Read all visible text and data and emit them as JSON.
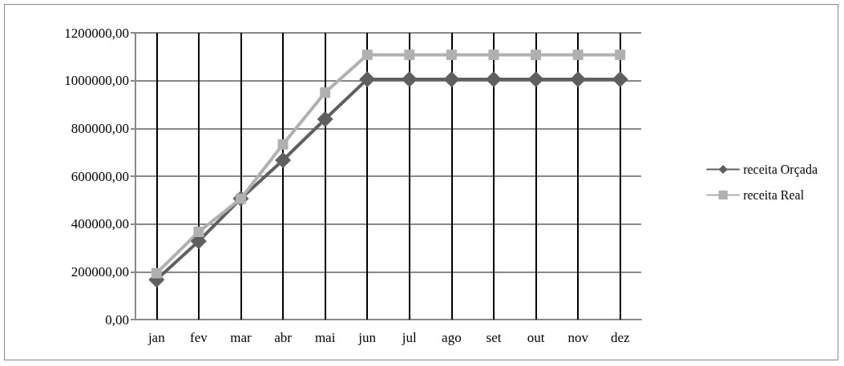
{
  "chart_data": {
    "type": "line",
    "categories": [
      "jan",
      "fev",
      "mar",
      "abr",
      "mai",
      "jun",
      "jul",
      "ago",
      "set",
      "out",
      "nov",
      "dez"
    ],
    "series": [
      {
        "name": "receita Orçada",
        "color": "#5f5f5f",
        "marker": "diamond",
        "values": [
          167000,
          328000,
          506000,
          667000,
          839000,
          1006000,
          1006000,
          1006000,
          1006000,
          1006000,
          1006000,
          1006000
        ]
      },
      {
        "name": "receita Real",
        "color": "#b0b0b0",
        "marker": "square",
        "values": [
          194000,
          367000,
          506000,
          733000,
          950000,
          1108000,
          1108000,
          1108000,
          1108000,
          1108000,
          1108000,
          1108000
        ]
      }
    ],
    "ylim": [
      0,
      1200000
    ],
    "yticks": [
      {
        "value": 0,
        "label": "0,00"
      },
      {
        "value": 200000,
        "label": "200000,00"
      },
      {
        "value": 400000,
        "label": "400000,00"
      },
      {
        "value": 600000,
        "label": "600000,00"
      },
      {
        "value": 800000,
        "label": "800000,00"
      },
      {
        "value": 1000000,
        "label": "1000000,00"
      },
      {
        "value": 1200000,
        "label": "1200000,00"
      }
    ],
    "ref_lines": [
      {
        "axis": "x",
        "value": "jan",
        "color": "#000000"
      },
      {
        "axis": "x",
        "value": "fev",
        "color": "#000000"
      },
      {
        "axis": "x",
        "value": "mar",
        "color": "#000000"
      },
      {
        "axis": "x",
        "value": "abr",
        "color": "#000000"
      },
      {
        "axis": "x",
        "value": "mai",
        "color": "#000000"
      },
      {
        "axis": "x",
        "value": "jun",
        "color": "#000000"
      },
      {
        "axis": "x",
        "value": "jul",
        "color": "#000000"
      },
      {
        "axis": "x",
        "value": "ago",
        "color": "#000000"
      },
      {
        "axis": "x",
        "value": "set",
        "color": "#000000"
      },
      {
        "axis": "x",
        "value": "out",
        "color": "#000000"
      },
      {
        "axis": "x",
        "value": "nov",
        "color": "#000000"
      },
      {
        "axis": "x",
        "value": "dez",
        "color": "#000000"
      }
    ],
    "grid": "y",
    "legend": "right",
    "line_style": "solid"
  }
}
